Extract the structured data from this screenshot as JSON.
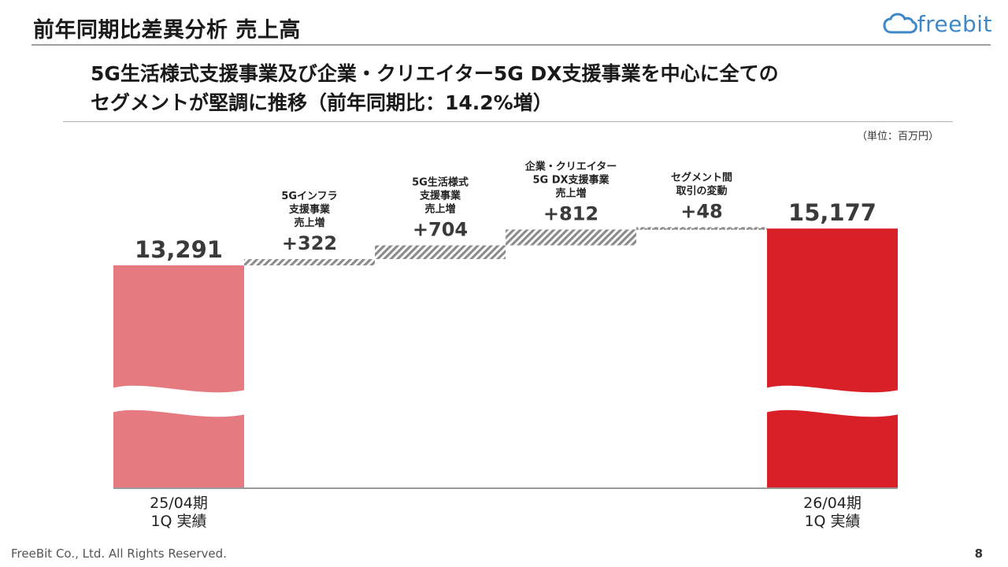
{
  "header": {
    "title": "前年同期比差異分析 売上高",
    "logo_text": "freebit"
  },
  "headline": {
    "line1": "5G生活様式支援事業及び企業・クリエイター5G DX支援事業を中心に全ての",
    "line2": "セグメントが堅調に推移（前年同期比：14.2%増）"
  },
  "unit_note": "（単位：百万円）",
  "chart_data": {
    "type": "bar",
    "subtype": "waterfall",
    "categories": [
      [
        "25/04期",
        "1Q 実績"
      ],
      [
        "5Gインフラ",
        "支援事業",
        "売上増"
      ],
      [
        "5G生活様式",
        "支援事業",
        "売上増"
      ],
      [
        "企業・クリエイター",
        "5G DX支援事業",
        "売上増"
      ],
      [
        "セグメント間",
        "取引の変動"
      ],
      [
        "26/04期",
        "1Q 実績"
      ]
    ],
    "values": [
      13291,
      322,
      704,
      812,
      48,
      15177
    ],
    "value_labels": [
      "13,291",
      "+322",
      "+704",
      "+812",
      "+48",
      "15,177"
    ],
    "kinds": [
      "total",
      "delta",
      "delta",
      "delta",
      "delta",
      "total"
    ],
    "axis_break": true,
    "colors": {
      "start_bar": "#e57a80",
      "end_bar": "#d92029",
      "delta_hatch": "#8c8c8c",
      "axis": "#9a9a9a"
    }
  },
  "footer": {
    "copyright": "FreeBit Co., Ltd. All Rights Reserved.",
    "page_number": "8"
  }
}
